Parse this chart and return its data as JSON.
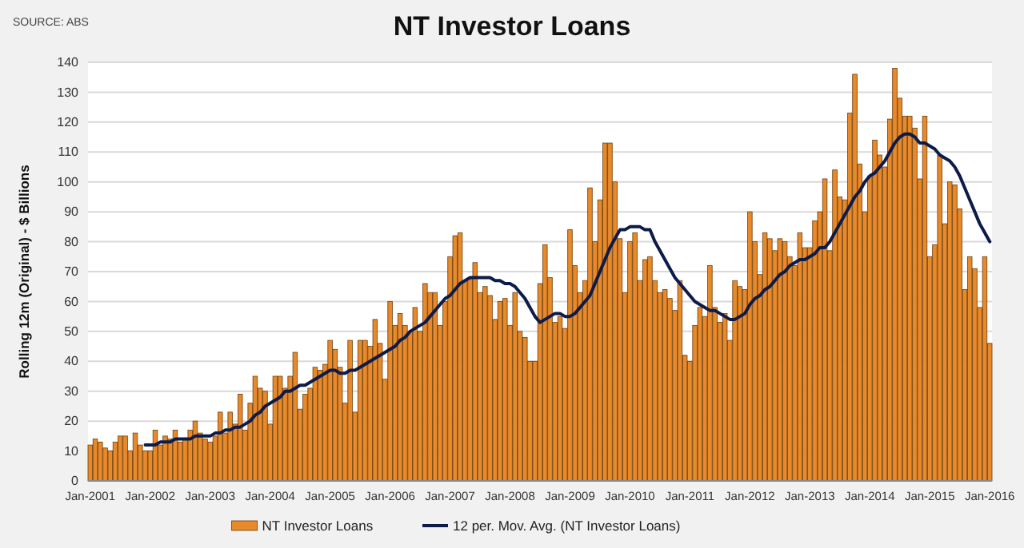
{
  "chart_data": {
    "type": "bar",
    "title": "NT Investor Loans",
    "ylabel": "Rolling 12m (Original) - $ Billions",
    "annotations": [
      "SOURCE: ABS"
    ],
    "categories": [
      "Jan-2001",
      null,
      null,
      null,
      null,
      null,
      null,
      null,
      null,
      null,
      null,
      null,
      "Jan-2002",
      null,
      null,
      null,
      null,
      null,
      null,
      null,
      null,
      null,
      null,
      null,
      "Jan-2003",
      null,
      null,
      null,
      null,
      null,
      null,
      null,
      null,
      null,
      null,
      null,
      "Jan-2004",
      null,
      null,
      null,
      null,
      null,
      null,
      null,
      null,
      null,
      null,
      null,
      "Jan-2005",
      null,
      null,
      null,
      null,
      null,
      null,
      null,
      null,
      null,
      null,
      null,
      "Jan-2006",
      null,
      null,
      null,
      null,
      null,
      null,
      null,
      null,
      null,
      null,
      null,
      "Jan-2007",
      null,
      null,
      null,
      null,
      null,
      null,
      null,
      null,
      null,
      null,
      null,
      "Jan-2008",
      null,
      null,
      null,
      null,
      null,
      null,
      null,
      null,
      null,
      null,
      null,
      "Jan-2009",
      null,
      null,
      null,
      null,
      null,
      null,
      null,
      null,
      null,
      null,
      null,
      "Jan-2010",
      null,
      null,
      null,
      null,
      null,
      null,
      null,
      null,
      null,
      null,
      null,
      "Jan-2011",
      null,
      null,
      null,
      null,
      null,
      null,
      null,
      null,
      null,
      null,
      null,
      "Jan-2012",
      null,
      null,
      null,
      null,
      null,
      null,
      null,
      null,
      null,
      null,
      null,
      "Jan-2013",
      null,
      null,
      null,
      null,
      null,
      null,
      null,
      null,
      null,
      null,
      null,
      "Jan-2014",
      null,
      null,
      null,
      null,
      null,
      null,
      null,
      null,
      null,
      null,
      null,
      "Jan-2015",
      null,
      null,
      null,
      null,
      null,
      null,
      null,
      null,
      null,
      null,
      null,
      "Jan-2016"
    ],
    "series": [
      {
        "name": "NT Investor Loans",
        "color": "#e8892a",
        "values": [
          12,
          14,
          13,
          11,
          10,
          13,
          15,
          15,
          10,
          16,
          12,
          10,
          10,
          17,
          12,
          15,
          14,
          17,
          13,
          14,
          17,
          20,
          16,
          14,
          13,
          15,
          23,
          16,
          23,
          19,
          29,
          17,
          26,
          35,
          31,
          30,
          19,
          35,
          35,
          31,
          35,
          43,
          24,
          29,
          31,
          38,
          37,
          39,
          47,
          44,
          38,
          26,
          47,
          23,
          47,
          47,
          45,
          54,
          46,
          34,
          60,
          52,
          56,
          52,
          50,
          58,
          50,
          66,
          63,
          63,
          52,
          60,
          75,
          82,
          83,
          67,
          68,
          73,
          63,
          65,
          62,
          54,
          60,
          61,
          52,
          63,
          50,
          48,
          40,
          40,
          66,
          79,
          68,
          53,
          55,
          51,
          84,
          72,
          63,
          67,
          98,
          80,
          94,
          113,
          113,
          100,
          81,
          63,
          80,
          83,
          67,
          74,
          75,
          67,
          63,
          64,
          61,
          57,
          67,
          42,
          40,
          52,
          58,
          55,
          72,
          58,
          53,
          56,
          47,
          67,
          65,
          64,
          90,
          80,
          69,
          83,
          81,
          77,
          81,
          80,
          75,
          72,
          83,
          78,
          78,
          87,
          90,
          101,
          77,
          104,
          95,
          94,
          123,
          136,
          106,
          90,
          102,
          114,
          109,
          105,
          121,
          138,
          128,
          122,
          122,
          118,
          101,
          122,
          75,
          79,
          109,
          86,
          100,
          99,
          91,
          64,
          75,
          71,
          58,
          75,
          46
        ]
      },
      {
        "name": "12 per. Mov. Avg. (NT Investor Loans)",
        "type": "line",
        "color": "#0d1b4a",
        "values": [
          null,
          null,
          null,
          null,
          null,
          null,
          null,
          null,
          null,
          null,
          null,
          12,
          12,
          12,
          13,
          13,
          13,
          14,
          14,
          14,
          14,
          15,
          15,
          15,
          15,
          16,
          16,
          17,
          17,
          18,
          18,
          19,
          20,
          22,
          23,
          25,
          26,
          27,
          28,
          30,
          30,
          31,
          32,
          32,
          33,
          34,
          35,
          36,
          37,
          37,
          36,
          36,
          37,
          37,
          38,
          39,
          40,
          41,
          42,
          43,
          44,
          45,
          47,
          48,
          50,
          51,
          52,
          53,
          55,
          57,
          59,
          61,
          62,
          64,
          66,
          67,
          68,
          68,
          68,
          68,
          68,
          67,
          67,
          66,
          66,
          65,
          63,
          61,
          58,
          55,
          53,
          54,
          55,
          56,
          56,
          55,
          55,
          56,
          58,
          60,
          62,
          66,
          70,
          74,
          78,
          81,
          84,
          84,
          85,
          85,
          85,
          84,
          84,
          80,
          77,
          74,
          71,
          68,
          66,
          64,
          62,
          60,
          59,
          58,
          57,
          57,
          56,
          55,
          54,
          54,
          55,
          56,
          59,
          61,
          62,
          64,
          65,
          67,
          69,
          70,
          72,
          73,
          74,
          74,
          75,
          76,
          78,
          78,
          80,
          83,
          86,
          89,
          92,
          95,
          97,
          100,
          102,
          103,
          105,
          107,
          110,
          113,
          115,
          116,
          116,
          115,
          113,
          113,
          112,
          111,
          109,
          108,
          107,
          105,
          102,
          98,
          94,
          90,
          86,
          83,
          80
        ]
      }
    ],
    "ylim": [
      0,
      140
    ],
    "yticks": [
      0,
      10,
      20,
      30,
      40,
      50,
      60,
      70,
      80,
      90,
      100,
      110,
      120,
      130,
      140
    ],
    "grid": "y",
    "legend": "bottom",
    "marker": "none",
    "line_style": "solid"
  }
}
